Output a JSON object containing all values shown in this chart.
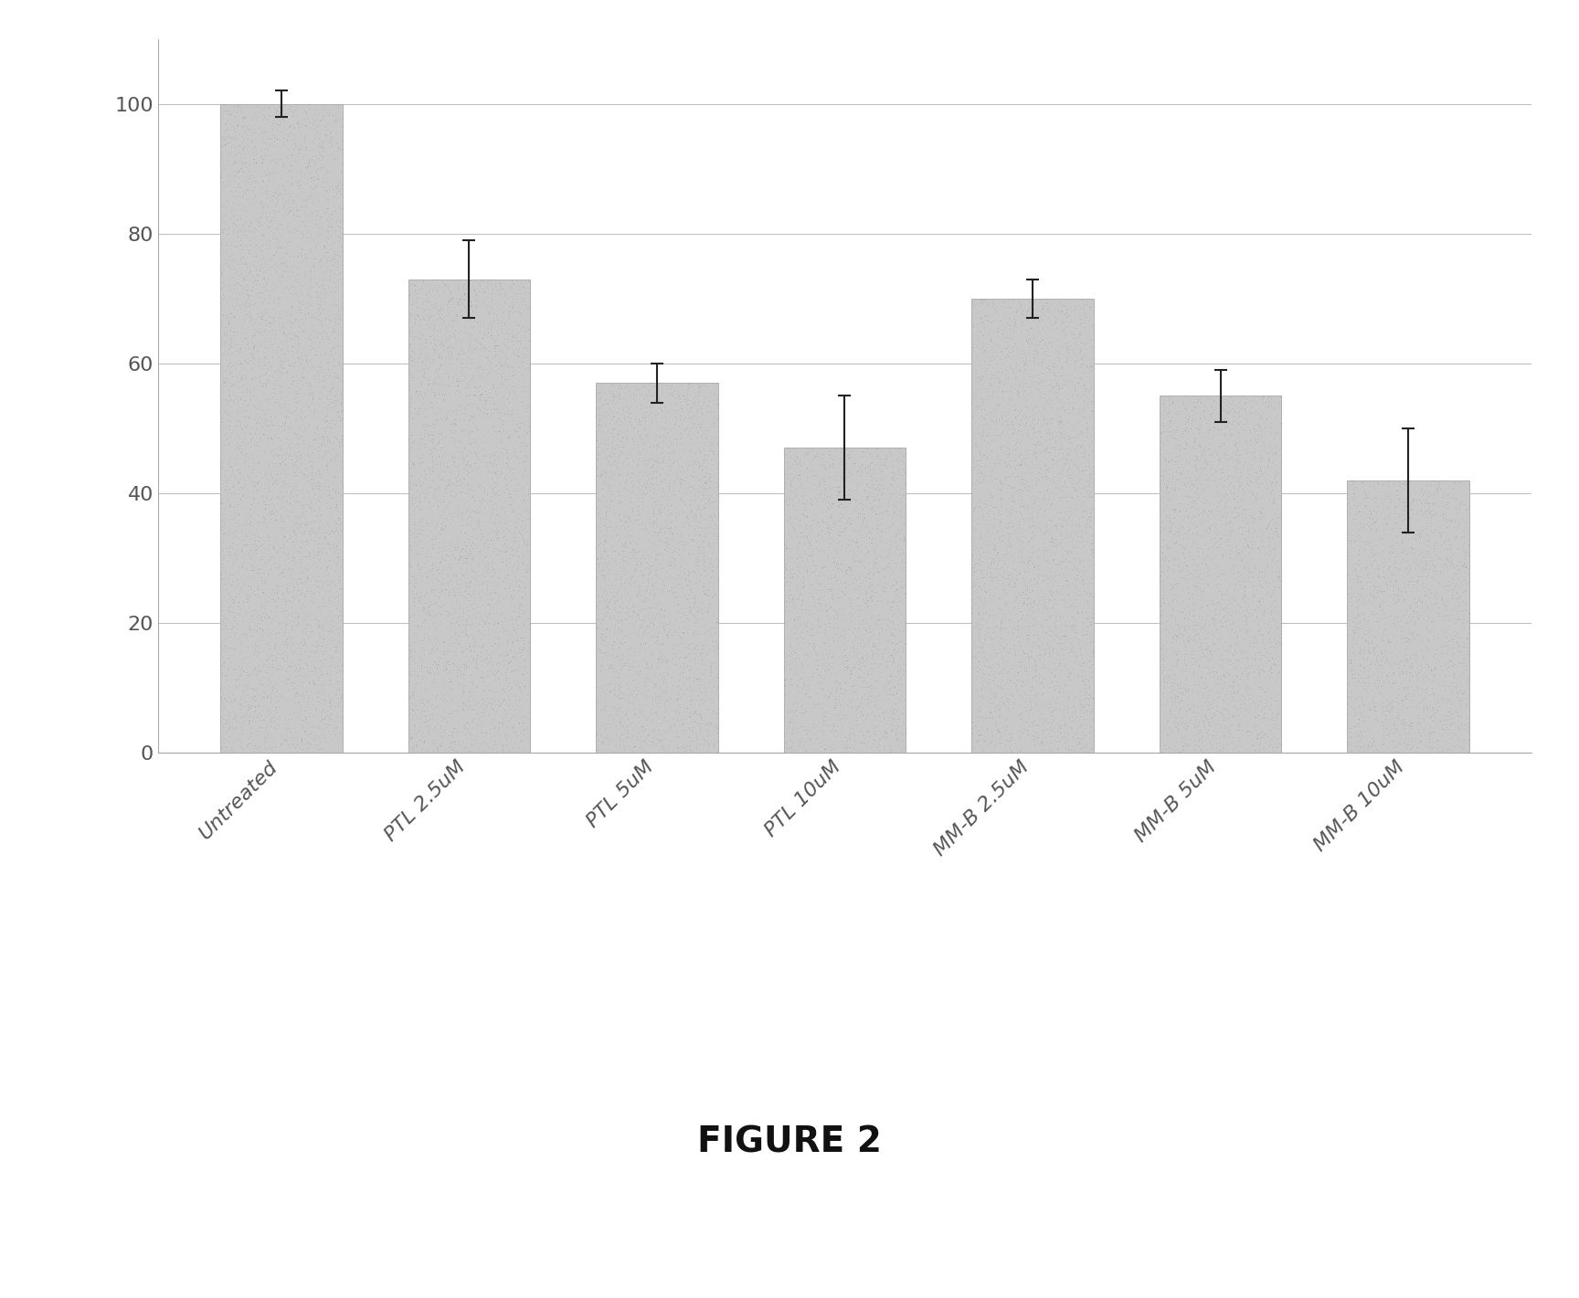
{
  "categories": [
    "Untreated",
    "PTL 2.5uM",
    "PTL 5uM",
    "PTL 10uM",
    "MM-B 2.5uM",
    "MM-B 5uM",
    "MM-B 10uM"
  ],
  "values": [
    100,
    73,
    57,
    47,
    70,
    55,
    42
  ],
  "errors": [
    2,
    6,
    3,
    8,
    3,
    4,
    8
  ],
  "bar_color": "#c8c8c8",
  "bar_edgecolor": "#b0b0b0",
  "error_color": "#222222",
  "grid_color": "#c0c0c0",
  "background_color": "#ffffff",
  "ylim": [
    0,
    110
  ],
  "yticks": [
    0,
    20,
    40,
    60,
    80,
    100
  ],
  "figure_caption": "FIGURE 2",
  "bar_width": 0.65,
  "tick_fontsize": 16,
  "caption_fontsize": 28,
  "noise_alpha": 0.08
}
